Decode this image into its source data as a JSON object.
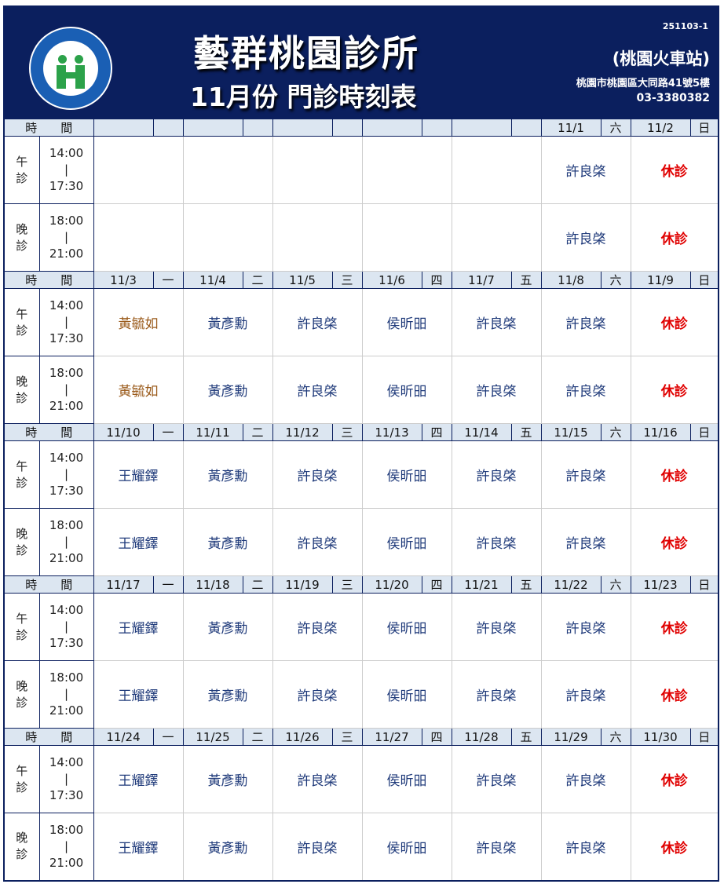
{
  "header": {
    "clinic_name": "藝群桃園診所",
    "subtitle": "11月份 門診時刻表",
    "code": "251103-1",
    "station": "(桃園火車站)",
    "address": "桃園市桃園區大同路41號5樓",
    "phone": "03-3380382",
    "logo_text": "全民健康保險 NATIONAL HEALTH INSURANCE"
  },
  "colors": {
    "header_bg": "#0b1f5e",
    "row_header_bg": "#dce6f1",
    "doctor": "#1f3a7a",
    "doctor_alt": "#9a5a1a",
    "closed": "#e00000"
  },
  "time_header": "時　　間",
  "sessions": [
    {
      "label": "午\n診",
      "start": "14:00",
      "sep": "|",
      "end": "17:30"
    },
    {
      "label": "晚\n診",
      "start": "18:00",
      "sep": "|",
      "end": "21:00"
    }
  ],
  "weeks": [
    {
      "days": [
        {
          "date": "",
          "weekday": "",
          "afternoon": "",
          "evening": ""
        },
        {
          "date": "",
          "weekday": "",
          "afternoon": "",
          "evening": ""
        },
        {
          "date": "",
          "weekday": "",
          "afternoon": "",
          "evening": ""
        },
        {
          "date": "",
          "weekday": "",
          "afternoon": "",
          "evening": ""
        },
        {
          "date": "",
          "weekday": "",
          "afternoon": "",
          "evening": ""
        },
        {
          "date": "11/1",
          "weekday": "六",
          "afternoon": "許良棨",
          "evening": "許良棨"
        },
        {
          "date": "11/2",
          "weekday": "日",
          "afternoon": "休診",
          "evening": "休診"
        }
      ]
    },
    {
      "days": [
        {
          "date": "11/3",
          "weekday": "一",
          "afternoon": "黃毓如",
          "evening": "黃毓如"
        },
        {
          "date": "11/4",
          "weekday": "二",
          "afternoon": "黃彥勳",
          "evening": "黃彥勳"
        },
        {
          "date": "11/5",
          "weekday": "三",
          "afternoon": "許良棨",
          "evening": "許良棨"
        },
        {
          "date": "11/6",
          "weekday": "四",
          "afternoon": "侯昕昍",
          "evening": "侯昕昍"
        },
        {
          "date": "11/7",
          "weekday": "五",
          "afternoon": "許良棨",
          "evening": "許良棨"
        },
        {
          "date": "11/8",
          "weekday": "六",
          "afternoon": "許良棨",
          "evening": "許良棨"
        },
        {
          "date": "11/9",
          "weekday": "日",
          "afternoon": "休診",
          "evening": "休診"
        }
      ]
    },
    {
      "days": [
        {
          "date": "11/10",
          "weekday": "一",
          "afternoon": "王耀鐸",
          "evening": "王耀鐸"
        },
        {
          "date": "11/11",
          "weekday": "二",
          "afternoon": "黃彥勳",
          "evening": "黃彥勳"
        },
        {
          "date": "11/12",
          "weekday": "三",
          "afternoon": "許良棨",
          "evening": "許良棨"
        },
        {
          "date": "11/13",
          "weekday": "四",
          "afternoon": "侯昕昍",
          "evening": "侯昕昍"
        },
        {
          "date": "11/14",
          "weekday": "五",
          "afternoon": "許良棨",
          "evening": "許良棨"
        },
        {
          "date": "11/15",
          "weekday": "六",
          "afternoon": "許良棨",
          "evening": "許良棨"
        },
        {
          "date": "11/16",
          "weekday": "日",
          "afternoon": "休診",
          "evening": "休診"
        }
      ]
    },
    {
      "days": [
        {
          "date": "11/17",
          "weekday": "一",
          "afternoon": "王耀鐸",
          "evening": "王耀鐸"
        },
        {
          "date": "11/18",
          "weekday": "二",
          "afternoon": "黃彥勳",
          "evening": "黃彥勳"
        },
        {
          "date": "11/19",
          "weekday": "三",
          "afternoon": "許良棨",
          "evening": "許良棨"
        },
        {
          "date": "11/20",
          "weekday": "四",
          "afternoon": "侯昕昍",
          "evening": "侯昕昍"
        },
        {
          "date": "11/21",
          "weekday": "五",
          "afternoon": "許良棨",
          "evening": "許良棨"
        },
        {
          "date": "11/22",
          "weekday": "六",
          "afternoon": "許良棨",
          "evening": "許良棨"
        },
        {
          "date": "11/23",
          "weekday": "日",
          "afternoon": "休診",
          "evening": "休診"
        }
      ]
    },
    {
      "days": [
        {
          "date": "11/24",
          "weekday": "一",
          "afternoon": "王耀鐸",
          "evening": "王耀鐸"
        },
        {
          "date": "11/25",
          "weekday": "二",
          "afternoon": "黃彥勳",
          "evening": "黃彥勳"
        },
        {
          "date": "11/26",
          "weekday": "三",
          "afternoon": "許良棨",
          "evening": "許良棨"
        },
        {
          "date": "11/27",
          "weekday": "四",
          "afternoon": "侯昕昍",
          "evening": "侯昕昍"
        },
        {
          "date": "11/28",
          "weekday": "五",
          "afternoon": "許良棨",
          "evening": "許良棨"
        },
        {
          "date": "11/29",
          "weekday": "六",
          "afternoon": "許良棨",
          "evening": "許良棨"
        },
        {
          "date": "11/30",
          "weekday": "日",
          "afternoon": "休診",
          "evening": "休診"
        }
      ]
    }
  ]
}
